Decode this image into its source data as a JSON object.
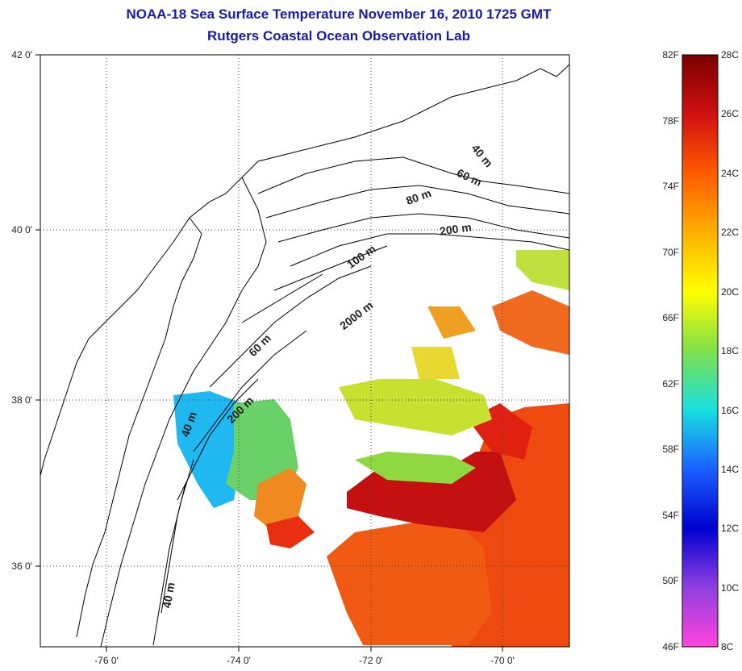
{
  "title": {
    "line1": "NOAA-18 Sea Surface Temperature November 16, 2010 1725 GMT",
    "line2": "Rutgers Coastal Ocean Observation Lab"
  },
  "map": {
    "lat_labels": [
      "42 0'",
      "40 0'",
      "38 0'",
      "36 0'"
    ],
    "lon_labels": [
      "-76 0'",
      "-74 0'",
      "-72 0'",
      "-70 0'"
    ],
    "contour_labels": [
      "40 m",
      "60 m",
      "80 m",
      "200 m",
      "100 m",
      "2000 m",
      "60 m",
      "200 m",
      "40 m",
      "40 m"
    ],
    "grid": "dotted"
  },
  "colorbar": {
    "fahrenheit": [
      "82F",
      "78F",
      "74F",
      "70F",
      "66F",
      "62F",
      "58F",
      "54F",
      "50F",
      "46F"
    ],
    "celsius": [
      "28C",
      "26C",
      "24C",
      "22C",
      "20C",
      "18C",
      "16C",
      "14C",
      "12C",
      "10C",
      "8C"
    ],
    "colors": [
      "#7a0000",
      "#d01010",
      "#ff5a00",
      "#ffb000",
      "#ffff00",
      "#7ee04a",
      "#18e0e0",
      "#1a60ff",
      "#0000d0",
      "#9040e0",
      "#ff44dd"
    ]
  }
}
